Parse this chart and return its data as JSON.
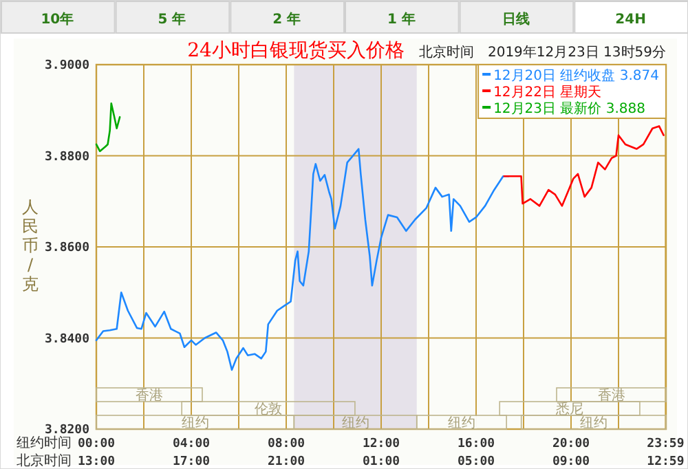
{
  "chart_data": {
    "type": "line",
    "title": "24小时白银现货买入价格",
    "subtitle": "北京时间　2019年12月23日 13时59分",
    "ylabel": "人民币/克",
    "xlabel": "纽约时间",
    "x2label": "北京时间",
    "annotations": [
      "10年",
      "5 年",
      "2 年",
      "1 年",
      "日线",
      "24H",
      "香港",
      "伦敦",
      "纽约",
      "纽约",
      "纽约",
      "悉尼",
      "香港"
    ],
    "xlim": [
      0,
      24
    ],
    "ylim": [
      3.82,
      3.9
    ],
    "xticks": [
      {
        "value": 0,
        "label": "00:00"
      },
      {
        "value": 2,
        "label": null
      },
      {
        "value": 4,
        "label": "04:00"
      },
      {
        "value": 6,
        "label": null
      },
      {
        "value": 8,
        "label": "08:00"
      },
      {
        "value": 10,
        "label": null
      },
      {
        "value": 12,
        "label": "12:00"
      },
      {
        "value": 14,
        "label": null
      },
      {
        "value": 16,
        "label": "16:00"
      },
      {
        "value": 18,
        "label": null
      },
      {
        "value": 20,
        "label": "20:00"
      },
      {
        "value": 22,
        "label": null
      },
      {
        "value": 23.983,
        "label": "23:59"
      }
    ],
    "x2lim": [
      "2019-12-22T13:00",
      "2019-12-23T13:00"
    ],
    "x2ticks": [
      {
        "value": "2019-12-22T13:00",
        "label": "13:00"
      },
      {
        "value": "2019-12-22T17:00",
        "label": "17:00"
      },
      {
        "value": "2019-12-22T21:00",
        "label": "21:00"
      },
      {
        "value": "2019-12-23T01:00",
        "label": "01:00"
      },
      {
        "value": "2019-12-23T05:00",
        "label": "05:00"
      },
      {
        "value": "2019-12-23T09:00",
        "label": "09:00"
      },
      {
        "value": "2019-12-23T12:59",
        "label": "12:59"
      }
    ],
    "yticks": [
      {
        "value": 3.82,
        "label": "3.8200"
      },
      {
        "value": 3.84,
        "label": "3.8400"
      },
      {
        "value": 3.86,
        "label": "3.8600"
      },
      {
        "value": 3.88,
        "label": "3.8800"
      },
      {
        "value": 3.9,
        "label": "3.9000"
      }
    ],
    "grid": true,
    "legend": "top right",
    "line_style": "solid",
    "marker": "none",
    "bands": [
      {
        "axis": "x",
        "from": 8.33,
        "to": 13.5,
        "label": "纽约",
        "color": "#e6e2ea"
      }
    ],
    "series": [
      {
        "name": "12月20日 纽约收盘 3.874",
        "color": "#1e88ff",
        "x": [
          0,
          0.29,
          0.57,
          0.86,
          1.05,
          1.33,
          1.71,
          1.9,
          2.1,
          2.48,
          2.86,
          3.14,
          3.52,
          3.71,
          4.0,
          4.19,
          4.57,
          5.05,
          5.33,
          5.52,
          5.71,
          5.9,
          6.19,
          6.38,
          6.67,
          6.95,
          7.14,
          7.24,
          7.62,
          7.9,
          8.19,
          8.38,
          8.48,
          8.57,
          8.72,
          8.95,
          9.14,
          9.24,
          9.43,
          9.62,
          9.81,
          9.9,
          10.05,
          10.29,
          10.57,
          11.05,
          11.14,
          11.33,
          11.52,
          11.62,
          11.81,
          12.0,
          12.29,
          12.67,
          13.05,
          13.43,
          13.9,
          14.29,
          14.57,
          14.86,
          14.95,
          15.05,
          15.33,
          15.71,
          16.0,
          16.38,
          16.76,
          17.14,
          17.37
        ],
        "values": [
          3.8395,
          3.8415,
          3.8417,
          3.842,
          3.85,
          3.846,
          3.8422,
          3.842,
          3.8455,
          3.8425,
          3.8458,
          3.842,
          3.841,
          3.838,
          3.8395,
          3.8385,
          3.84,
          3.8412,
          3.8395,
          3.837,
          3.833,
          3.8355,
          3.8378,
          3.8362,
          3.8365,
          3.8355,
          3.837,
          3.843,
          3.846,
          3.847,
          3.848,
          3.857,
          3.859,
          3.8525,
          3.8515,
          3.859,
          3.876,
          3.8782,
          3.8745,
          3.8758,
          3.872,
          3.8705,
          3.864,
          3.869,
          3.8785,
          3.8815,
          3.876,
          3.866,
          3.858,
          3.8515,
          3.857,
          3.862,
          3.867,
          3.8665,
          3.8635,
          3.866,
          3.8685,
          3.873,
          3.871,
          3.8715,
          3.8635,
          3.8705,
          3.869,
          3.8655,
          3.8665,
          3.869,
          3.8725,
          3.8755,
          3.8755
        ]
      },
      {
        "name": "12月22日 星期天",
        "color": "#ff0000",
        "x": [
          17.18,
          17.9,
          17.96,
          18.29,
          18.67,
          19.05,
          19.33,
          19.62,
          19.9,
          20.1,
          20.29,
          20.57,
          20.86,
          21.14,
          21.43,
          21.71,
          21.9,
          22.0,
          22.29,
          22.76,
          23.05,
          23.43,
          23.71,
          23.9
        ],
        "values": [
          3.8755,
          3.8755,
          3.8695,
          3.8705,
          3.869,
          3.8725,
          3.8715,
          3.869,
          3.8725,
          3.875,
          3.876,
          3.871,
          3.873,
          3.8785,
          3.877,
          3.8795,
          3.88,
          3.8845,
          3.8825,
          3.8815,
          3.8825,
          3.886,
          3.8865,
          3.8845
        ]
      },
      {
        "name": "12月23日 最新价 3.888",
        "color": "#00aa00",
        "x": [
          0,
          0.15,
          0.38,
          0.48,
          0.57,
          0.63,
          0.76,
          0.86,
          0.99
        ],
        "values": [
          3.8825,
          3.881,
          3.882,
          3.8825,
          3.8855,
          3.8915,
          3.8885,
          3.886,
          3.8885
        ]
      }
    ]
  }
}
